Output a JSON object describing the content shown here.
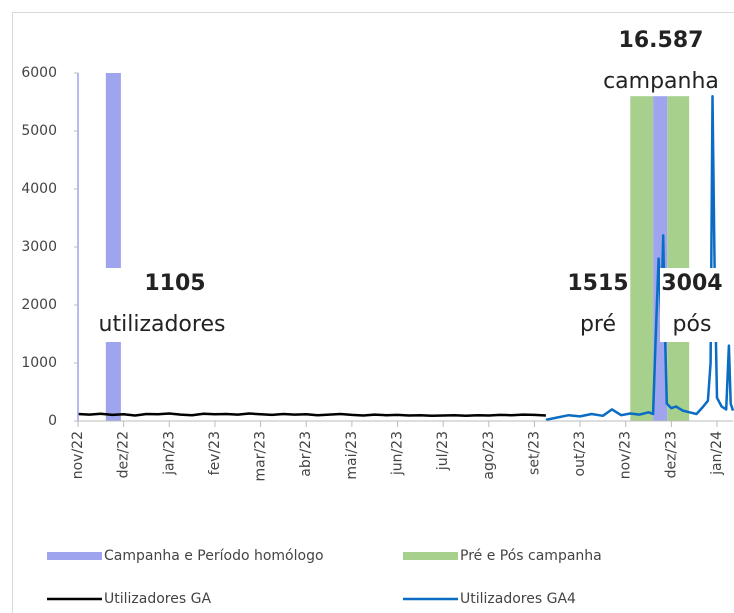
{
  "chart_data": {
    "type": "line",
    "xlim": [
      0,
      14.35
    ],
    "xticks": [
      {
        "value": 0,
        "label": "nov/22"
      },
      {
        "value": 1,
        "label": "dez/22"
      },
      {
        "value": 2,
        "label": "jan/23"
      },
      {
        "value": 3,
        "label": "fev/23"
      },
      {
        "value": 4,
        "label": "mar/23"
      },
      {
        "value": 5,
        "label": "abr/23"
      },
      {
        "value": 6,
        "label": "mai/23"
      },
      {
        "value": 7,
        "label": "jun/23"
      },
      {
        "value": 8,
        "label": "jul/23"
      },
      {
        "value": 9,
        "label": "ago/23"
      },
      {
        "value": 10,
        "label": "set/23"
      },
      {
        "value": 11,
        "label": "out/23"
      },
      {
        "value": 12,
        "label": "nov/23"
      },
      {
        "value": 13,
        "label": "dez/23"
      },
      {
        "value": 14,
        "label": "jan/24"
      }
    ],
    "ylim": [
      0,
      6000
    ],
    "yticks": [
      0,
      1000,
      2000,
      3000,
      4000,
      5000,
      6000
    ],
    "bands": [
      {
        "name": "Pré e Pós campanha",
        "color": "#a8d08d",
        "spans": [
          {
            "start": 12.1,
            "end": 12.6,
            "value": 5600
          },
          {
            "start": 12.91,
            "end": 13.39,
            "value": 5600
          }
        ]
      },
      {
        "name": "Campanha e Período homólogo",
        "color": "#9fa4ef",
        "spans": [
          {
            "start": 0.61,
            "end": 0.94,
            "value": 6000
          },
          {
            "start": 12.6,
            "end": 12.91,
            "value": 5600
          }
        ]
      }
    ],
    "series": [
      {
        "name": "Utilizadores GA",
        "color": "#000000",
        "x": [
          0,
          0.25,
          0.5,
          0.75,
          1,
          1.25,
          1.5,
          1.75,
          2,
          2.25,
          2.5,
          2.75,
          3,
          3.25,
          3.5,
          3.75,
          4,
          4.25,
          4.5,
          4.75,
          5,
          5.25,
          5.5,
          5.75,
          6,
          6.25,
          6.5,
          6.75,
          7,
          7.25,
          7.5,
          7.75,
          8,
          8.25,
          8.5,
          8.75,
          9,
          9.25,
          9.5,
          9.75,
          10,
          10.25
        ],
        "values": [
          120,
          110,
          125,
          105,
          115,
          95,
          120,
          115,
          130,
          110,
          100,
          125,
          115,
          120,
          110,
          130,
          115,
          105,
          120,
          110,
          115,
          100,
          110,
          120,
          105,
          95,
          110,
          100,
          105,
          95,
          100,
          90,
          95,
          100,
          90,
          100,
          95,
          105,
          100,
          110,
          105,
          95
        ]
      },
      {
        "name": "Utilizadores GA4",
        "color": "#0a6cc2",
        "x": [
          10.25,
          10.5,
          10.75,
          11,
          11.25,
          11.5,
          11.7,
          11.9,
          12.1,
          12.3,
          12.5,
          12.6,
          12.65,
          12.72,
          12.78,
          12.82,
          12.86,
          12.9,
          13,
          13.1,
          13.25,
          13.4,
          13.55,
          13.7,
          13.8,
          13.86,
          13.9,
          13.95,
          14,
          14.1,
          14.2,
          14.26,
          14.3,
          14.35
        ],
        "values": [
          20,
          60,
          100,
          80,
          120,
          90,
          200,
          100,
          130,
          110,
          150,
          120,
          1300,
          2800,
          1800,
          3200,
          1500,
          300,
          220,
          250,
          180,
          150,
          120,
          250,
          350,
          1000,
          5600,
          2500,
          400,
          250,
          200,
          1300,
          300,
          180
        ]
      }
    ],
    "annotations": [
      "1105",
      "utilizadores",
      "1515",
      "pré",
      "3004",
      "pós",
      "16.587",
      "campanha"
    ]
  }
}
